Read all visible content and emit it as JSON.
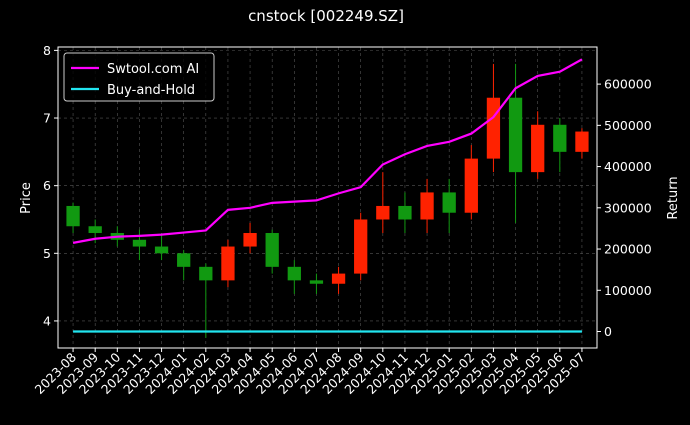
{
  "chart_data": {
    "type": "candlestick",
    "title": "cnstock [002249.SZ]",
    "ylabel": "Price",
    "y2label": "Return",
    "categories": [
      "2023-08",
      "2023-09",
      "2023-10",
      "2023-11",
      "2023-12",
      "2024-01",
      "2024-02",
      "2024-03",
      "2024-04",
      "2024-05",
      "2024-06",
      "2024-07",
      "2024-08",
      "2024-09",
      "2024-10",
      "2024-11",
      "2024-12",
      "2025-01",
      "2025-02",
      "2025-03",
      "2025-04",
      "2025-05",
      "2025-06",
      "2025-07"
    ],
    "open": [
      5.7,
      5.4,
      5.3,
      5.2,
      5.1,
      5.0,
      4.8,
      4.6,
      5.1,
      5.3,
      4.8,
      4.6,
      4.55,
      4.7,
      5.5,
      5.7,
      5.5,
      5.9,
      5.6,
      6.4,
      7.3,
      6.2,
      6.9,
      6.5
    ],
    "high": [
      5.75,
      5.5,
      5.4,
      5.35,
      5.3,
      5.05,
      4.85,
      5.2,
      5.45,
      5.35,
      4.9,
      4.7,
      4.8,
      5.6,
      6.2,
      5.9,
      6.1,
      6.1,
      6.6,
      7.8,
      7.8,
      7.1,
      7.0,
      6.85
    ],
    "low": [
      5.3,
      5.15,
      5.1,
      4.9,
      4.9,
      4.6,
      3.75,
      4.5,
      5.0,
      4.7,
      4.4,
      4.4,
      4.4,
      4.6,
      5.3,
      5.3,
      5.3,
      5.3,
      5.5,
      6.2,
      5.45,
      6.1,
      6.2,
      6.4
    ],
    "close": [
      5.4,
      5.3,
      5.2,
      5.1,
      5.0,
      4.8,
      4.6,
      5.1,
      5.3,
      4.8,
      4.6,
      4.55,
      4.7,
      5.5,
      5.7,
      5.5,
      5.9,
      5.6,
      6.4,
      7.3,
      6.2,
      6.9,
      6.5,
      6.8
    ],
    "up_color": "#ff2200",
    "down_color": "#119911",
    "series": [
      {
        "name": "Swtool.com AI",
        "color": "#ff00ff",
        "axis": "y2",
        "values": [
          215000,
          225000,
          230000,
          232000,
          235000,
          240000,
          245000,
          295000,
          300000,
          312000,
          315000,
          318000,
          335000,
          350000,
          405000,
          430000,
          450000,
          460000,
          480000,
          520000,
          590000,
          620000,
          630000,
          660000
        ]
      },
      {
        "name": "Buy-and-Hold",
        "color": "#22e5f0",
        "axis": "y2",
        "values": [
          0,
          0,
          0,
          0,
          0,
          0,
          0,
          0,
          0,
          0,
          0,
          0,
          0,
          0,
          0,
          0,
          0,
          0,
          0,
          0,
          0,
          0,
          0,
          0
        ]
      }
    ],
    "ylim": [
      3.6,
      8.05
    ],
    "yticks": [
      4,
      5,
      6,
      7,
      8
    ],
    "y2lim": [
      -40000,
      690000
    ],
    "y2ticks": [
      0,
      100000,
      200000,
      300000,
      400000,
      500000,
      600000
    ],
    "grid": true,
    "legend": "upper left"
  }
}
